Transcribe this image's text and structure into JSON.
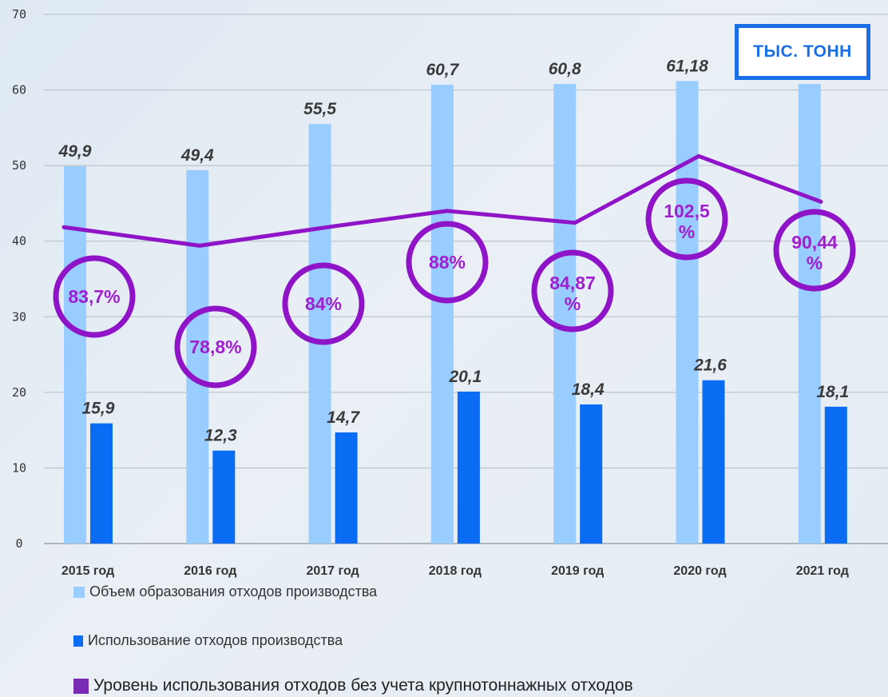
{
  "chart_data": {
    "type": "bar",
    "categories": [
      "2015 год",
      "2016 год",
      "2017 год",
      "2018 год",
      "2019 год",
      "2020 год",
      "2021 год"
    ],
    "series": [
      {
        "name": "Объем образования отходов производства",
        "color": "#99ccff",
        "values": [
          49.9,
          49.4,
          55.5,
          60.7,
          60.8,
          61.18,
          60.8
        ],
        "labels": [
          "49,9",
          "49,4",
          "55,5",
          "60,7",
          "60,8",
          "61,18",
          ""
        ]
      },
      {
        "name": "Использование отходов производства",
        "color": "#0a6cf2",
        "values": [
          15.9,
          12.3,
          14.7,
          20.1,
          18.4,
          21.6,
          18.1
        ],
        "labels": [
          "15,9",
          "12,3",
          "14,7",
          "20,1",
          "18,4",
          "21,6",
          "18,1"
        ]
      },
      {
        "name": "Уровень использования отходов без учета крупнотоннажных отходов",
        "type": "line",
        "color": "#8f14c8",
        "values": [
          83.7,
          78.8,
          84,
          88,
          84.87,
          102.5,
          90.44
        ],
        "labels": [
          "83,7%",
          "78,8%",
          "84%",
          "88%",
          "84,87 %",
          "102,5 %",
          "90,44 %"
        ]
      }
    ],
    "y_ticks": [
      "0",
      "10",
      "20",
      "30",
      "40",
      "50",
      "60",
      "70"
    ],
    "ylim": [
      0,
      70
    ],
    "unit_label": "ТЫС. ТОНН",
    "grid": true,
    "legend_position": "bottom-left"
  }
}
